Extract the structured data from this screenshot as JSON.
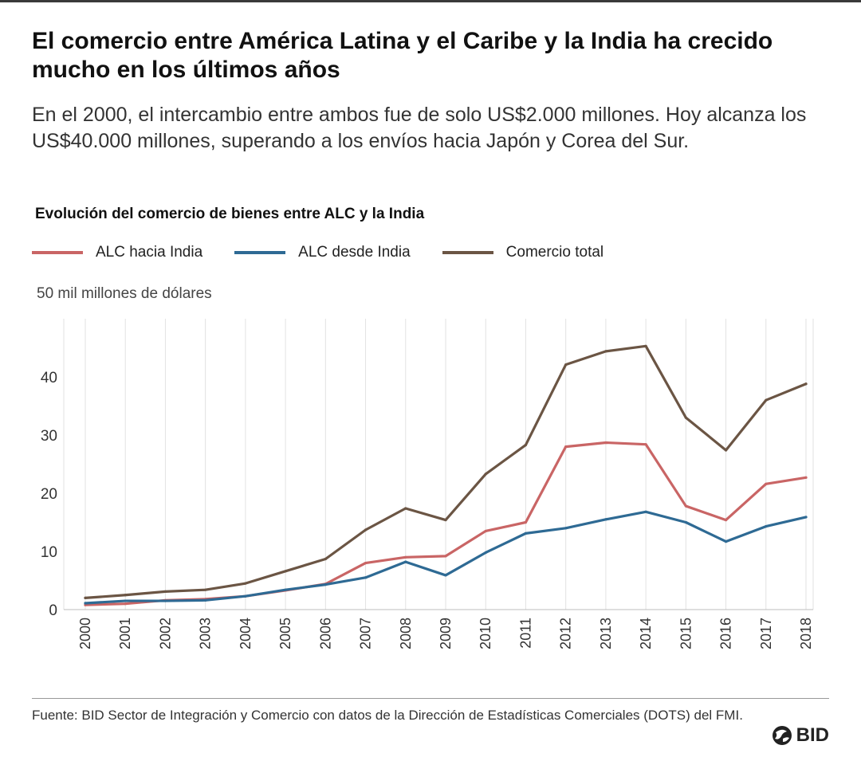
{
  "header": {
    "title": "El comercio entre América Latina y el Caribe y la India ha crecido mucho en los últimos años",
    "subtitle": "En el 2000, el intercambio entre ambos fue de solo US$2.000 millones. Hoy alcanza los US$40.000 millones, superando a los envíos hacia Japón y Corea del Sur."
  },
  "footer": {
    "source": "Fuente: BID Sector de Integración y Comercio con datos de la Dirección de Estadísticas Comerciales (DOTS) del FMI.",
    "logo_text": "BID",
    "logo_icon": "bid-logo-icon"
  },
  "colors": {
    "alc_hacia": "#c96565",
    "alc_desde": "#2e6a94",
    "total": "#6b5544",
    "grid": "#e2e2e2",
    "axis": "#666666"
  },
  "chart_data": {
    "type": "line",
    "title": "Evolución del comercio de bienes entre ALC y la India",
    "ylabel": "50 mil millones de dólares",
    "xlabel": "",
    "x": [
      "2000",
      "2001",
      "2002",
      "2003",
      "2004",
      "2005",
      "2006",
      "2007",
      "2008",
      "2009",
      "2010",
      "2011",
      "2012",
      "2013",
      "2014",
      "2015",
      "2016",
      "2017",
      "2018"
    ],
    "ylim": [
      0,
      50
    ],
    "yticks": [
      0,
      10,
      20,
      30,
      40
    ],
    "series": [
      {
        "name": "ALC hacia India",
        "color_key": "alc_hacia",
        "values": [
          0.8,
          1.0,
          1.6,
          1.8,
          2.3,
          3.3,
          4.4,
          8.0,
          9.0,
          9.2,
          13.5,
          15.0,
          28.0,
          28.7,
          28.4,
          17.8,
          15.4,
          21.6,
          22.7
        ]
      },
      {
        "name": "ALC desde India",
        "color_key": "alc_desde",
        "values": [
          1.1,
          1.5,
          1.5,
          1.6,
          2.3,
          3.4,
          4.3,
          5.5,
          8.2,
          5.9,
          9.8,
          13.1,
          14.0,
          15.5,
          16.8,
          15.0,
          11.7,
          14.3,
          15.9
        ]
      },
      {
        "name": "Comercio total",
        "color_key": "total",
        "values": [
          2.0,
          2.5,
          3.1,
          3.4,
          4.5,
          6.6,
          8.7,
          13.7,
          17.4,
          15.4,
          23.3,
          28.3,
          42.1,
          44.4,
          45.3,
          33.0,
          27.4,
          36.0,
          38.8
        ]
      }
    ],
    "grid": true,
    "legend": "top-left"
  }
}
